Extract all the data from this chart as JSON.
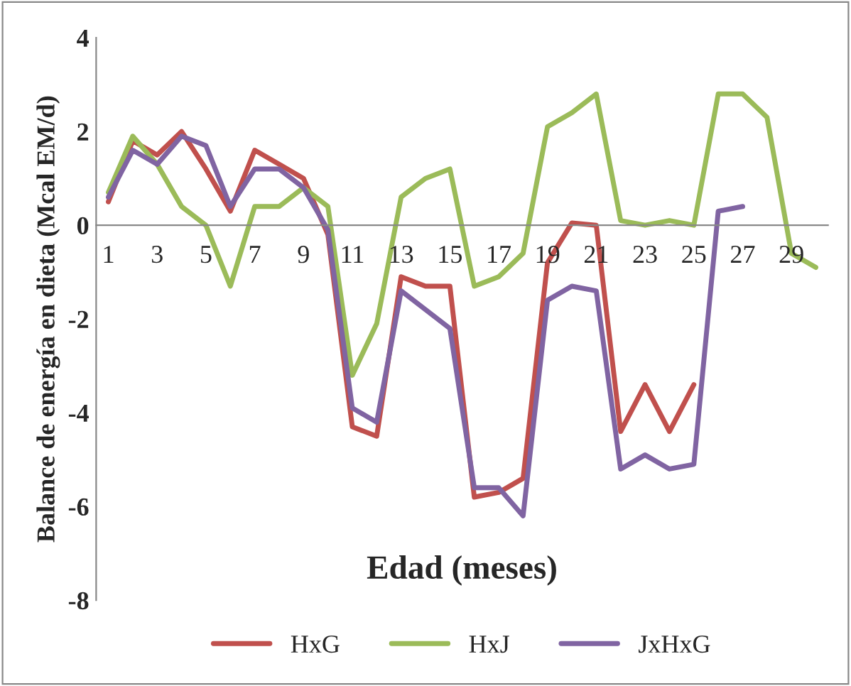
{
  "chart_data": {
    "type": "line",
    "xlabel": "Edad (meses)",
    "ylabel": "Balance de energía en dieta (Mcal EM/d)",
    "categories": [
      "1",
      null,
      "3",
      null,
      "5",
      null,
      "7",
      null,
      "9",
      null,
      "11",
      null,
      "13",
      null,
      "15",
      null,
      "17",
      null,
      "19",
      null,
      "21",
      null,
      "23",
      null,
      "25",
      null,
      "27",
      null,
      "29",
      null
    ],
    "series": [
      {
        "name": "HxG",
        "color": "#c0504d",
        "values": [
          0.5,
          1.8,
          1.5,
          2.0,
          1.2,
          0.3,
          1.6,
          1.3,
          1.0,
          -0.2,
          -4.3,
          -4.5,
          -1.1,
          -1.3,
          -1.3,
          -5.8,
          -5.7,
          -5.4,
          -0.8,
          0.05,
          0.0,
          -4.4,
          -3.4,
          -4.4,
          -3.4,
          null,
          null,
          null,
          null,
          null
        ]
      },
      {
        "name": "HxJ",
        "color": "#9bbb59",
        "values": [
          0.7,
          1.9,
          1.3,
          0.4,
          0.0,
          -1.3,
          0.4,
          0.4,
          0.8,
          0.4,
          -3.2,
          -2.1,
          0.6,
          1.0,
          1.2,
          -1.3,
          -1.1,
          -0.6,
          2.1,
          2.4,
          2.8,
          0.1,
          0.0,
          0.1,
          0.0,
          2.8,
          2.8,
          2.3,
          -0.6,
          -0.9
        ]
      },
      {
        "name": "JxHxG",
        "color": "#8064a2",
        "values": [
          0.6,
          1.6,
          1.3,
          1.9,
          1.7,
          0.4,
          1.2,
          1.2,
          0.8,
          -0.1,
          -3.9,
          -4.2,
          -1.4,
          -1.8,
          -2.2,
          -5.6,
          -5.6,
          -6.2,
          -1.6,
          -1.3,
          -1.4,
          -5.2,
          -4.9,
          -5.2,
          -5.1,
          0.3,
          0.4,
          null,
          null,
          null
        ]
      }
    ],
    "ylim": [
      -8,
      4
    ],
    "yticks": [
      -8,
      -6,
      -4,
      -2,
      0,
      2,
      4
    ],
    "grid": false,
    "legend": "bottom",
    "marker": "none",
    "line_style": "solid"
  }
}
